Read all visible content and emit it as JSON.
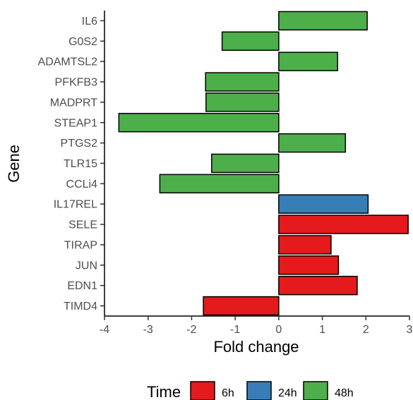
{
  "chart_data": {
    "type": "bar",
    "orientation": "horizontal",
    "xlabel": "Fold change",
    "ylabel": "Gene",
    "xlim": [
      -4,
      3
    ],
    "xticks": [
      -4,
      -3,
      -2,
      -1,
      0,
      1,
      2,
      3
    ],
    "grid": false,
    "legend": {
      "title": "Time",
      "position": "bottom",
      "entries": [
        {
          "label": "6h",
          "color": "#e41a1c"
        },
        {
          "label": "24h",
          "color": "#377eb8"
        },
        {
          "label": "48h",
          "color": "#4daf4a"
        }
      ]
    },
    "bars": [
      {
        "gene": "IL6",
        "value": 2.03,
        "time": "48h"
      },
      {
        "gene": "G0S2",
        "value": -1.3,
        "time": "48h"
      },
      {
        "gene": "ADAMTSL2",
        "value": 1.35,
        "time": "48h"
      },
      {
        "gene": "PFKFB3",
        "value": -1.68,
        "time": "48h"
      },
      {
        "gene": "MADPRT",
        "value": -1.67,
        "time": "48h"
      },
      {
        "gene": "STEAP1",
        "value": -3.67,
        "time": "48h"
      },
      {
        "gene": "PTGS2",
        "value": 1.53,
        "time": "48h"
      },
      {
        "gene": "TLR15",
        "value": -1.54,
        "time": "48h"
      },
      {
        "gene": "CCLi4",
        "value": -2.73,
        "time": "48h"
      },
      {
        "gene": "IL17REL",
        "value": 2.05,
        "time": "24h"
      },
      {
        "gene": "SELE",
        "value": 2.97,
        "time": "6h"
      },
      {
        "gene": "TIRAP",
        "value": 1.2,
        "time": "6h"
      },
      {
        "gene": "JUN",
        "value": 1.37,
        "time": "6h"
      },
      {
        "gene": "EDN1",
        "value": 1.8,
        "time": "6h"
      },
      {
        "gene": "TIMD4",
        "value": -1.73,
        "time": "6h"
      }
    ]
  }
}
